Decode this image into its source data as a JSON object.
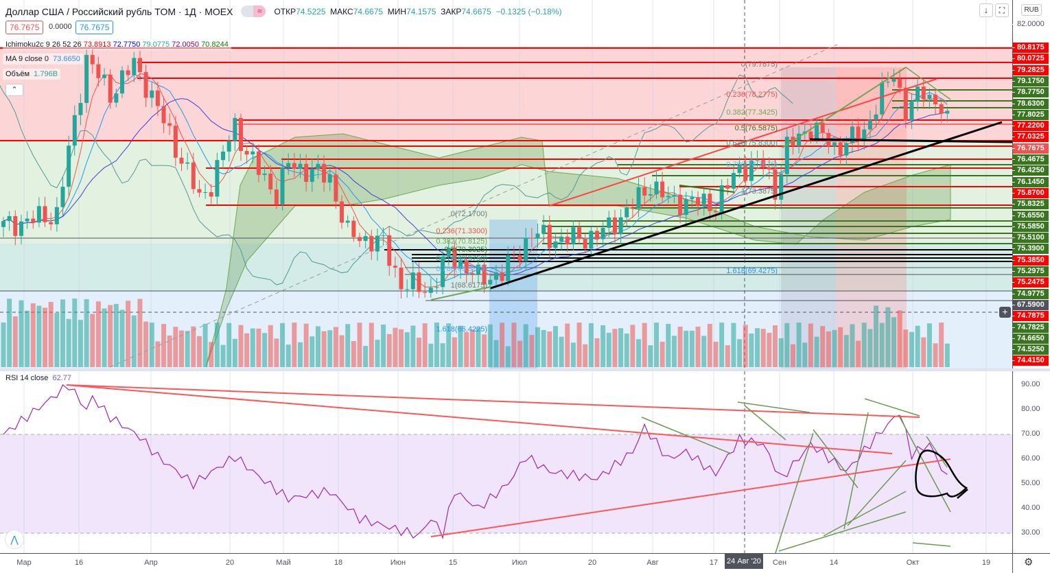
{
  "header": {
    "title": "Доллар США / Российский рубль TOM · 1Д · MOEX",
    "mode_icon": "≈",
    "ohlc": [
      {
        "k": "ОТКР",
        "v": "74.5225"
      },
      {
        "k": "МАКС",
        "v": "74.6675"
      },
      {
        "k": "МИН",
        "v": "74.1575"
      },
      {
        "k": "ЗАКР",
        "v": "74.6675"
      }
    ],
    "change": "−0.1325 (−0.18%)",
    "sell": "76.7675",
    "spread": "0.0000",
    "buy": "76.7675",
    "currency": "RUB"
  },
  "legend": {
    "ichimoku": {
      "name": "Ichimoku2c 9 26 52 26",
      "vals": [
        "73.8913",
        "72.7750",
        "79.0775",
        "72.0050",
        "70.8244"
      ],
      "colors": [
        "#ff0000",
        "#0000ff",
        "#26a69a",
        "#800080",
        "#008000"
      ]
    },
    "ma": {
      "name": "MA 9 close 0",
      "val": "73.6650"
    },
    "volume": {
      "name": "Объём",
      "val": "1.796B"
    },
    "rsi": {
      "name": "RSI 14 close",
      "val": "62.77"
    }
  },
  "price_axis": {
    "top": "82.0000",
    "labels": [
      {
        "t": "80.8175",
        "c": "red"
      },
      {
        "t": "80.0725",
        "c": "red"
      },
      {
        "t": "79.2825",
        "c": "red"
      },
      {
        "t": "79.1750",
        "c": "green"
      },
      {
        "t": "78.7750",
        "c": "green"
      },
      {
        "t": "78.6300",
        "c": "green"
      },
      {
        "t": "77.8025",
        "c": "green"
      },
      {
        "t": "77.2200",
        "c": "red"
      },
      {
        "t": "77.0325",
        "c": "red"
      },
      {
        "t": "76.7675",
        "c": "cur"
      },
      {
        "t": "76.4675",
        "c": "green"
      },
      {
        "t": "76.4250",
        "c": "green"
      },
      {
        "t": "76.1450",
        "c": "green"
      },
      {
        "t": "75.8700",
        "c": "red"
      },
      {
        "t": "75.8325",
        "c": "green"
      },
      {
        "t": "75.6550",
        "c": "green"
      },
      {
        "t": "75.5850",
        "c": "green"
      },
      {
        "t": "75.5100",
        "c": "green"
      },
      {
        "t": "75.3900",
        "c": "green"
      },
      {
        "t": "75.3850",
        "c": "red"
      },
      {
        "t": "75.2975",
        "c": "green"
      },
      {
        "t": "75.2475",
        "c": "red"
      },
      {
        "t": "74.9775",
        "c": "green"
      },
      {
        "t": "67.5900",
        "c": "dark"
      },
      {
        "t": "74.7875",
        "c": "red"
      },
      {
        "t": "74.7825",
        "c": "green"
      },
      {
        "t": "74.6650",
        "c": "green"
      },
      {
        "t": "74.5250",
        "c": "green"
      },
      {
        "t": "74.4150",
        "c": "red"
      }
    ]
  },
  "rsi_axis": [
    "90.00",
    "80.00",
    "70.00",
    "60.00",
    "50.00",
    "40.00",
    "30.00"
  ],
  "time_axis": [
    "Мар",
    "16",
    "Апр",
    "20",
    "Май",
    "18",
    "Июн",
    "15",
    "Июл",
    "20",
    "Авг",
    "17",
    "Сен",
    "14",
    "Окт",
    "19"
  ],
  "crosshair_date": "24 Авг '20",
  "fib1": [
    "0(72.1700)",
    "0.236(71.3300)",
    "0.382(70.8125)",
    "0.5(70.3925)",
    "0.618(69.9750)",
    "0.786(69.3775)",
    "1(68.6175)",
    "1.618(66.4225)"
  ],
  "fib2": [
    "0(79.7875)",
    "0.236(78.2775)",
    "0.382(77.3425)",
    "0.5(76.5875)",
    "0.618(75.8300)",
    "0.786(74.7575)",
    "1(73.3875)",
    "1.618(69.4275)"
  ],
  "chart_data": {
    "type": "candlestick",
    "candles": 160,
    "price_path": [
      [
        0,
        71.9
      ],
      [
        9,
        72.5
      ],
      [
        14,
        80.3
      ],
      [
        18,
        78.5
      ],
      [
        22,
        80.0
      ],
      [
        24,
        79.0
      ],
      [
        28,
        76.5
      ],
      [
        33,
        73.3
      ],
      [
        35,
        74.0
      ],
      [
        39,
        77.0
      ],
      [
        41,
        75.5
      ],
      [
        46,
        73.5
      ],
      [
        48,
        75.0
      ],
      [
        55,
        74.3
      ],
      [
        58,
        71.5
      ],
      [
        64,
        71.0
      ],
      [
        67,
        69.0
      ],
      [
        72,
        68.7
      ],
      [
        75,
        70.5
      ],
      [
        80,
        69.3
      ],
      [
        84,
        69.5
      ],
      [
        89,
        71.5
      ],
      [
        94,
        71.2
      ],
      [
        100,
        71.4
      ],
      [
        105,
        72.6
      ],
      [
        109,
        74.0
      ],
      [
        112,
        73.2
      ],
      [
        120,
        73.0
      ],
      [
        124,
        74.8
      ],
      [
        128,
        75.0
      ],
      [
        130,
        73.7
      ],
      [
        132,
        75.8
      ],
      [
        136,
        76.9
      ],
      [
        140,
        75.8
      ],
      [
        145,
        76.6
      ],
      [
        147,
        78.0
      ],
      [
        150,
        79.5
      ],
      [
        152,
        77.7
      ],
      [
        155,
        78.6
      ],
      [
        158,
        77.9
      ],
      [
        159,
        77.0
      ]
    ],
    "rsi_path": [
      [
        0,
        70
      ],
      [
        5,
        79
      ],
      [
        11,
        90
      ],
      [
        14,
        80
      ],
      [
        15,
        85
      ],
      [
        18,
        77
      ],
      [
        23,
        69
      ],
      [
        26,
        61
      ],
      [
        32,
        50
      ],
      [
        39,
        61
      ],
      [
        43,
        53
      ],
      [
        48,
        44
      ],
      [
        55,
        47
      ],
      [
        60,
        36
      ],
      [
        67,
        31
      ],
      [
        70,
        29
      ],
      [
        72,
        36
      ],
      [
        74,
        30
      ],
      [
        76,
        47
      ],
      [
        80,
        40
      ],
      [
        85,
        50
      ],
      [
        88,
        61
      ],
      [
        92,
        55
      ],
      [
        100,
        52
      ],
      [
        106,
        63
      ],
      [
        108,
        73
      ],
      [
        112,
        60
      ],
      [
        115,
        63
      ],
      [
        120,
        54
      ],
      [
        124,
        68
      ],
      [
        128,
        66
      ],
      [
        131,
        52
      ],
      [
        136,
        66
      ],
      [
        142,
        55
      ],
      [
        147,
        69
      ],
      [
        151,
        79
      ],
      [
        153,
        62
      ],
      [
        156,
        66
      ],
      [
        159,
        52
      ]
    ],
    "rsi_range": [
      22,
      95
    ]
  }
}
